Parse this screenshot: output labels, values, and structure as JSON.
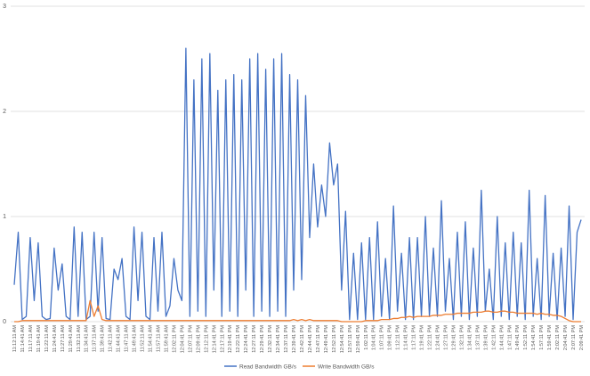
{
  "chart_data": {
    "type": "line",
    "categories": [
      "11:12:11 AM",
      null,
      "11:14:41 AM",
      null,
      "11:17:11 AM",
      null,
      "11:19:41 AM",
      null,
      "11:22:11 AM",
      null,
      "11:24:41 AM",
      null,
      "11:27:11 AM",
      null,
      "11:29:41 AM",
      null,
      "11:32:11 AM",
      null,
      "11:34:41 AM",
      null,
      "11:37:11 AM",
      null,
      "11:39:41 AM",
      null,
      "11:42:11 AM",
      null,
      "11:44:41 AM",
      null,
      "11:47:11 AM",
      null,
      "11:49:41 AM",
      null,
      "11:52:11 AM",
      null,
      "11:54:41 AM",
      null,
      "11:57:11 AM",
      null,
      "11:59:41 AM",
      null,
      "12:02:11 PM",
      null,
      "12:04:41 PM",
      null,
      "12:07:11 PM",
      null,
      "12:09:41 PM",
      null,
      "12:12:11 PM",
      null,
      "12:14:41 PM",
      null,
      "12:17:11 PM",
      null,
      "12:19:41 PM",
      null,
      "12:22:11 PM",
      null,
      "12:24:41 PM",
      null,
      "12:27:11 PM",
      null,
      "12:29:41 PM",
      null,
      "12:32:11 PM",
      null,
      "12:34:41 PM",
      null,
      "12:37:11 PM",
      null,
      "12:39:41 PM",
      null,
      "12:42:11 PM",
      null,
      "12:44:41 PM",
      null,
      "12:47:11 PM",
      null,
      "12:49:41 PM",
      null,
      "12:52:11 PM",
      null,
      "12:54:41 PM",
      null,
      "12:57:11 PM",
      null,
      "12:59:41 PM",
      null,
      "1:02:11 PM",
      null,
      "1:04:41 PM",
      null,
      "1:07:11 PM",
      null,
      "1:09:41 PM",
      null,
      "1:12:11 PM",
      null,
      "1:14:41 PM",
      null,
      "1:17:11 PM",
      null,
      "1:19:41 PM",
      null,
      "1:22:11 PM",
      null,
      "1:24:41 PM",
      null,
      "1:27:11 PM",
      null,
      "1:29:41 PM",
      null,
      "1:32:11 PM",
      null,
      "1:34:41 PM",
      null,
      "1:37:11 PM",
      null,
      "1:39:41 PM",
      null,
      "1:42:11 PM",
      null,
      "1:44:41 PM",
      null,
      "1:47:11 PM",
      null,
      "1:49:41 PM",
      null,
      "1:52:11 PM",
      null,
      "1:54:41 PM",
      null,
      "1:57:11 PM",
      null,
      "1:59:41 PM",
      null,
      "2:02:11 PM",
      null,
      "2:04:41 PM",
      null,
      "2:07:11 PM",
      null,
      "2:09:41 PM"
    ],
    "series": [
      {
        "name": "Read Bandwidth GB/s",
        "color": "#4472c4",
        "values": [
          0.35,
          0.85,
          0.02,
          0.05,
          0.8,
          0.2,
          0.75,
          0.05,
          0.02,
          0.03,
          0.7,
          0.3,
          0.55,
          0.05,
          0.02,
          0.9,
          0.05,
          0.85,
          0.02,
          0.05,
          0.85,
          0.1,
          0.8,
          0.03,
          0.02,
          0.5,
          0.4,
          0.6,
          0.05,
          0.02,
          0.9,
          0.2,
          0.85,
          0.05,
          0.02,
          0.8,
          0.1,
          0.85,
          0.05,
          0.15,
          0.6,
          0.3,
          0.2,
          2.6,
          0.05,
          2.3,
          0.1,
          2.5,
          0.05,
          2.55,
          0.3,
          2.2,
          0.05,
          2.3,
          0.1,
          2.35,
          0.05,
          2.3,
          0.3,
          2.5,
          0.05,
          2.55,
          0.1,
          2.4,
          0.05,
          2.5,
          0.1,
          2.55,
          0.05,
          2.35,
          0.3,
          2.3,
          0.4,
          2.15,
          0.8,
          1.5,
          0.9,
          1.3,
          1.0,
          1.7,
          1.3,
          1.5,
          0.3,
          1.05,
          0.02,
          0.65,
          0.02,
          0.75,
          0.02,
          0.8,
          0.02,
          0.95,
          0.05,
          0.6,
          0.02,
          1.1,
          0.1,
          0.65,
          0.02,
          0.8,
          0.02,
          0.8,
          0.05,
          1.0,
          0.05,
          0.7,
          0.05,
          1.15,
          0.1,
          0.6,
          0.02,
          0.85,
          0.05,
          0.95,
          0.02,
          0.7,
          0.05,
          1.25,
          0.1,
          0.5,
          0.02,
          1.0,
          0.05,
          0.75,
          0.02,
          0.85,
          0.05,
          0.75,
          0.02,
          1.25,
          0.05,
          0.6,
          0.02,
          1.2,
          0.05,
          0.65,
          0.02,
          0.7,
          0.05,
          1.1,
          0.02,
          0.85,
          0.97
        ]
      },
      {
        "name": "Write Bandwidth GB/s",
        "color": "#ed7d31",
        "values": [
          0,
          0,
          0.01,
          0.01,
          0.01,
          0.01,
          0.01,
          0.01,
          0.01,
          0.01,
          0.01,
          0.01,
          0.01,
          0.01,
          0.01,
          0.01,
          0.01,
          0.01,
          0.01,
          0.2,
          0.05,
          0.15,
          0.02,
          0.01,
          0.01,
          0.01,
          0.01,
          0.01,
          0.01,
          0.01,
          0.01,
          0.01,
          0.01,
          0.01,
          0.01,
          0.01,
          0.01,
          0.01,
          0.01,
          0.01,
          0.01,
          0.01,
          0.01,
          0.01,
          0.01,
          0.01,
          0.01,
          0.01,
          0.01,
          0.01,
          0.01,
          0.01,
          0.01,
          0.01,
          0.01,
          0.01,
          0.01,
          0.01,
          0.01,
          0.01,
          0.01,
          0.01,
          0.01,
          0.01,
          0.01,
          0.01,
          0.01,
          0.01,
          0.01,
          0.01,
          0.02,
          0.01,
          0.02,
          0.01,
          0.02,
          0.01,
          0.01,
          0.01,
          0.01,
          0.01,
          0.01,
          0.01,
          0,
          0,
          0,
          0,
          0,
          0,
          0.01,
          0.01,
          0.01,
          0.01,
          0.02,
          0.02,
          0.02,
          0.03,
          0.03,
          0.04,
          0.04,
          0.05,
          0.04,
          0.05,
          0.05,
          0.05,
          0.05,
          0.06,
          0.06,
          0.06,
          0.07,
          0.07,
          0.07,
          0.08,
          0.08,
          0.08,
          0.08,
          0.09,
          0.09,
          0.09,
          0.1,
          0.1,
          0.09,
          0.09,
          0.1,
          0.1,
          0.09,
          0.09,
          0.08,
          0.08,
          0.08,
          0.08,
          0.08,
          0.07,
          0.08,
          0.07,
          0.07,
          0.06,
          0.06,
          0.05,
          0.03,
          0.01,
          0,
          0,
          0
        ]
      }
    ],
    "ylim": [
      0,
      3
    ],
    "yticks": [
      0,
      1,
      2,
      3
    ],
    "grid": true,
    "legend": "bottom"
  }
}
